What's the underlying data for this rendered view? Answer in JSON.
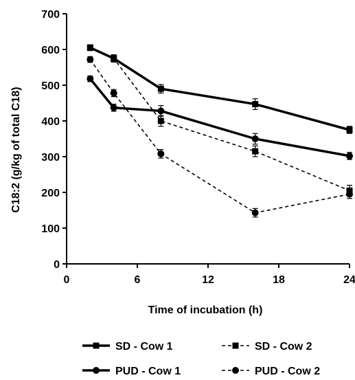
{
  "chart_data": {
    "type": "line",
    "xlabel": "Time of incubation (h)",
    "ylabel": "C18:2 (g/kg of total C18)",
    "xlim": [
      0,
      24
    ],
    "ylim": [
      0,
      700
    ],
    "xticks": [
      0,
      6,
      12,
      18,
      24
    ],
    "yticks": [
      0,
      100,
      200,
      300,
      400,
      500,
      600,
      700
    ],
    "grid": false,
    "legend_position": "bottom",
    "series": [
      {
        "name": "SD - Cow 1",
        "marker": "square",
        "line": "solid",
        "color": "#000000",
        "x": [
          2,
          4,
          8,
          16,
          24
        ],
        "y": [
          605,
          575,
          490,
          447,
          375
        ],
        "err": [
          8,
          10,
          12,
          15,
          10
        ]
      },
      {
        "name": "SD - Cow 2",
        "marker": "square",
        "line": "dashed",
        "color": "#000000",
        "x": [
          2,
          4,
          8,
          16,
          24
        ],
        "y": [
          605,
          575,
          400,
          315,
          205
        ],
        "err": [
          8,
          10,
          15,
          15,
          15
        ]
      },
      {
        "name": "PUD - Cow 1",
        "marker": "circle",
        "line": "solid",
        "color": "#000000",
        "x": [
          2,
          4,
          8,
          16,
          24
        ],
        "y": [
          518,
          437,
          428,
          350,
          302
        ],
        "err": [
          8,
          10,
          15,
          15,
          10
        ]
      },
      {
        "name": "PUD - Cow 2",
        "marker": "circle",
        "line": "dashed",
        "color": "#000000",
        "x": [
          2,
          4,
          8,
          16,
          24
        ],
        "y": [
          572,
          478,
          308,
          143,
          195
        ],
        "err": [
          8,
          10,
          12,
          12,
          12
        ]
      }
    ]
  }
}
